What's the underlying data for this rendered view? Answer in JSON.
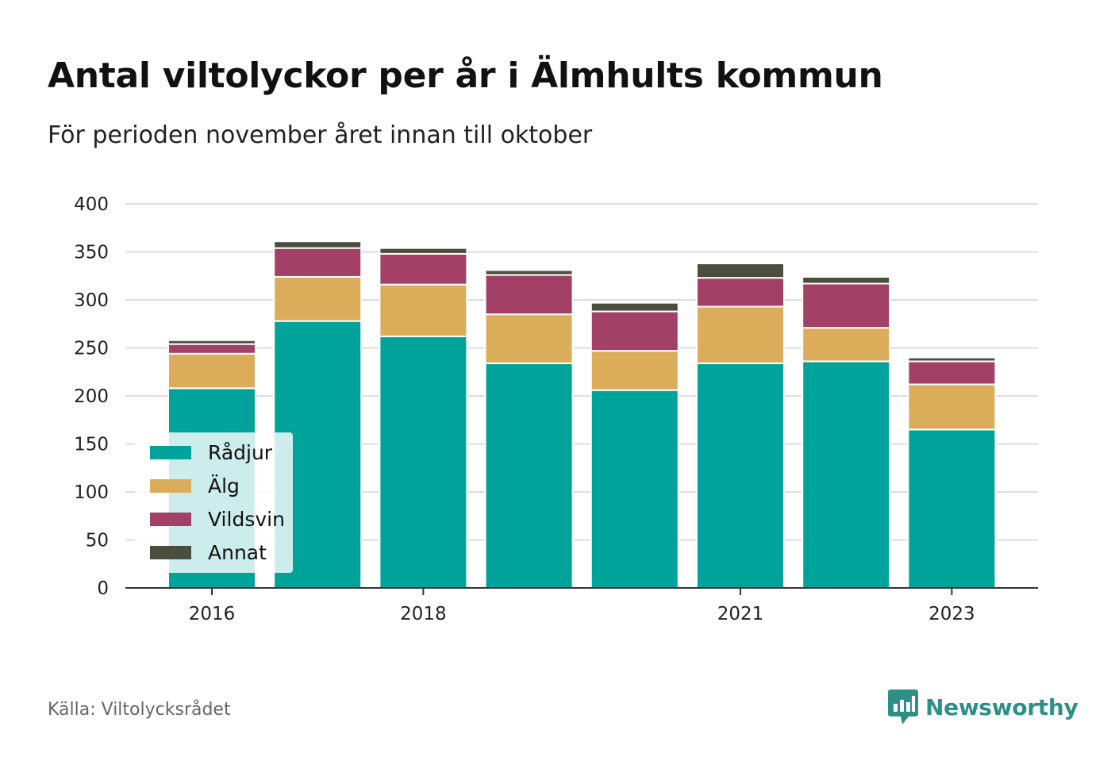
{
  "header": {
    "title": "Antal viltolyckor per år i Älmhults kommun",
    "subtitle": "För perioden november året innan till oktober"
  },
  "footer": {
    "source": "Källa: Viltolycksrådet",
    "brand": "Newsworthy",
    "brand_color": "#2f8f88"
  },
  "chart_data": {
    "type": "bar",
    "stacked": true,
    "categories": [
      "2016",
      "2017",
      "2018",
      "2019",
      "2020",
      "2021",
      "2022",
      "2023"
    ],
    "x_tick_labels": [
      "2016",
      "",
      "2018",
      "",
      "",
      "2021",
      "",
      "2023"
    ],
    "series": [
      {
        "name": "Rådjur",
        "color": "#00a39a",
        "values": [
          208,
          278,
          262,
          234,
          206,
          234,
          236,
          165
        ]
      },
      {
        "name": "Älg",
        "color": "#dbad5a",
        "values": [
          36,
          46,
          54,
          51,
          41,
          59,
          35,
          47
        ]
      },
      {
        "name": "Vildsvin",
        "color": "#a34066",
        "values": [
          10,
          30,
          32,
          41,
          41,
          30,
          46,
          24
        ]
      },
      {
        "name": "Annat",
        "color": "#4b4d3f",
        "values": [
          4,
          7,
          6,
          5,
          9,
          15,
          7,
          4
        ]
      }
    ],
    "ylim": [
      0,
      400
    ],
    "y_ticks": [
      0,
      50,
      100,
      150,
      200,
      250,
      300,
      350,
      400
    ],
    "grid": true,
    "legend_position": "bottom-left"
  }
}
